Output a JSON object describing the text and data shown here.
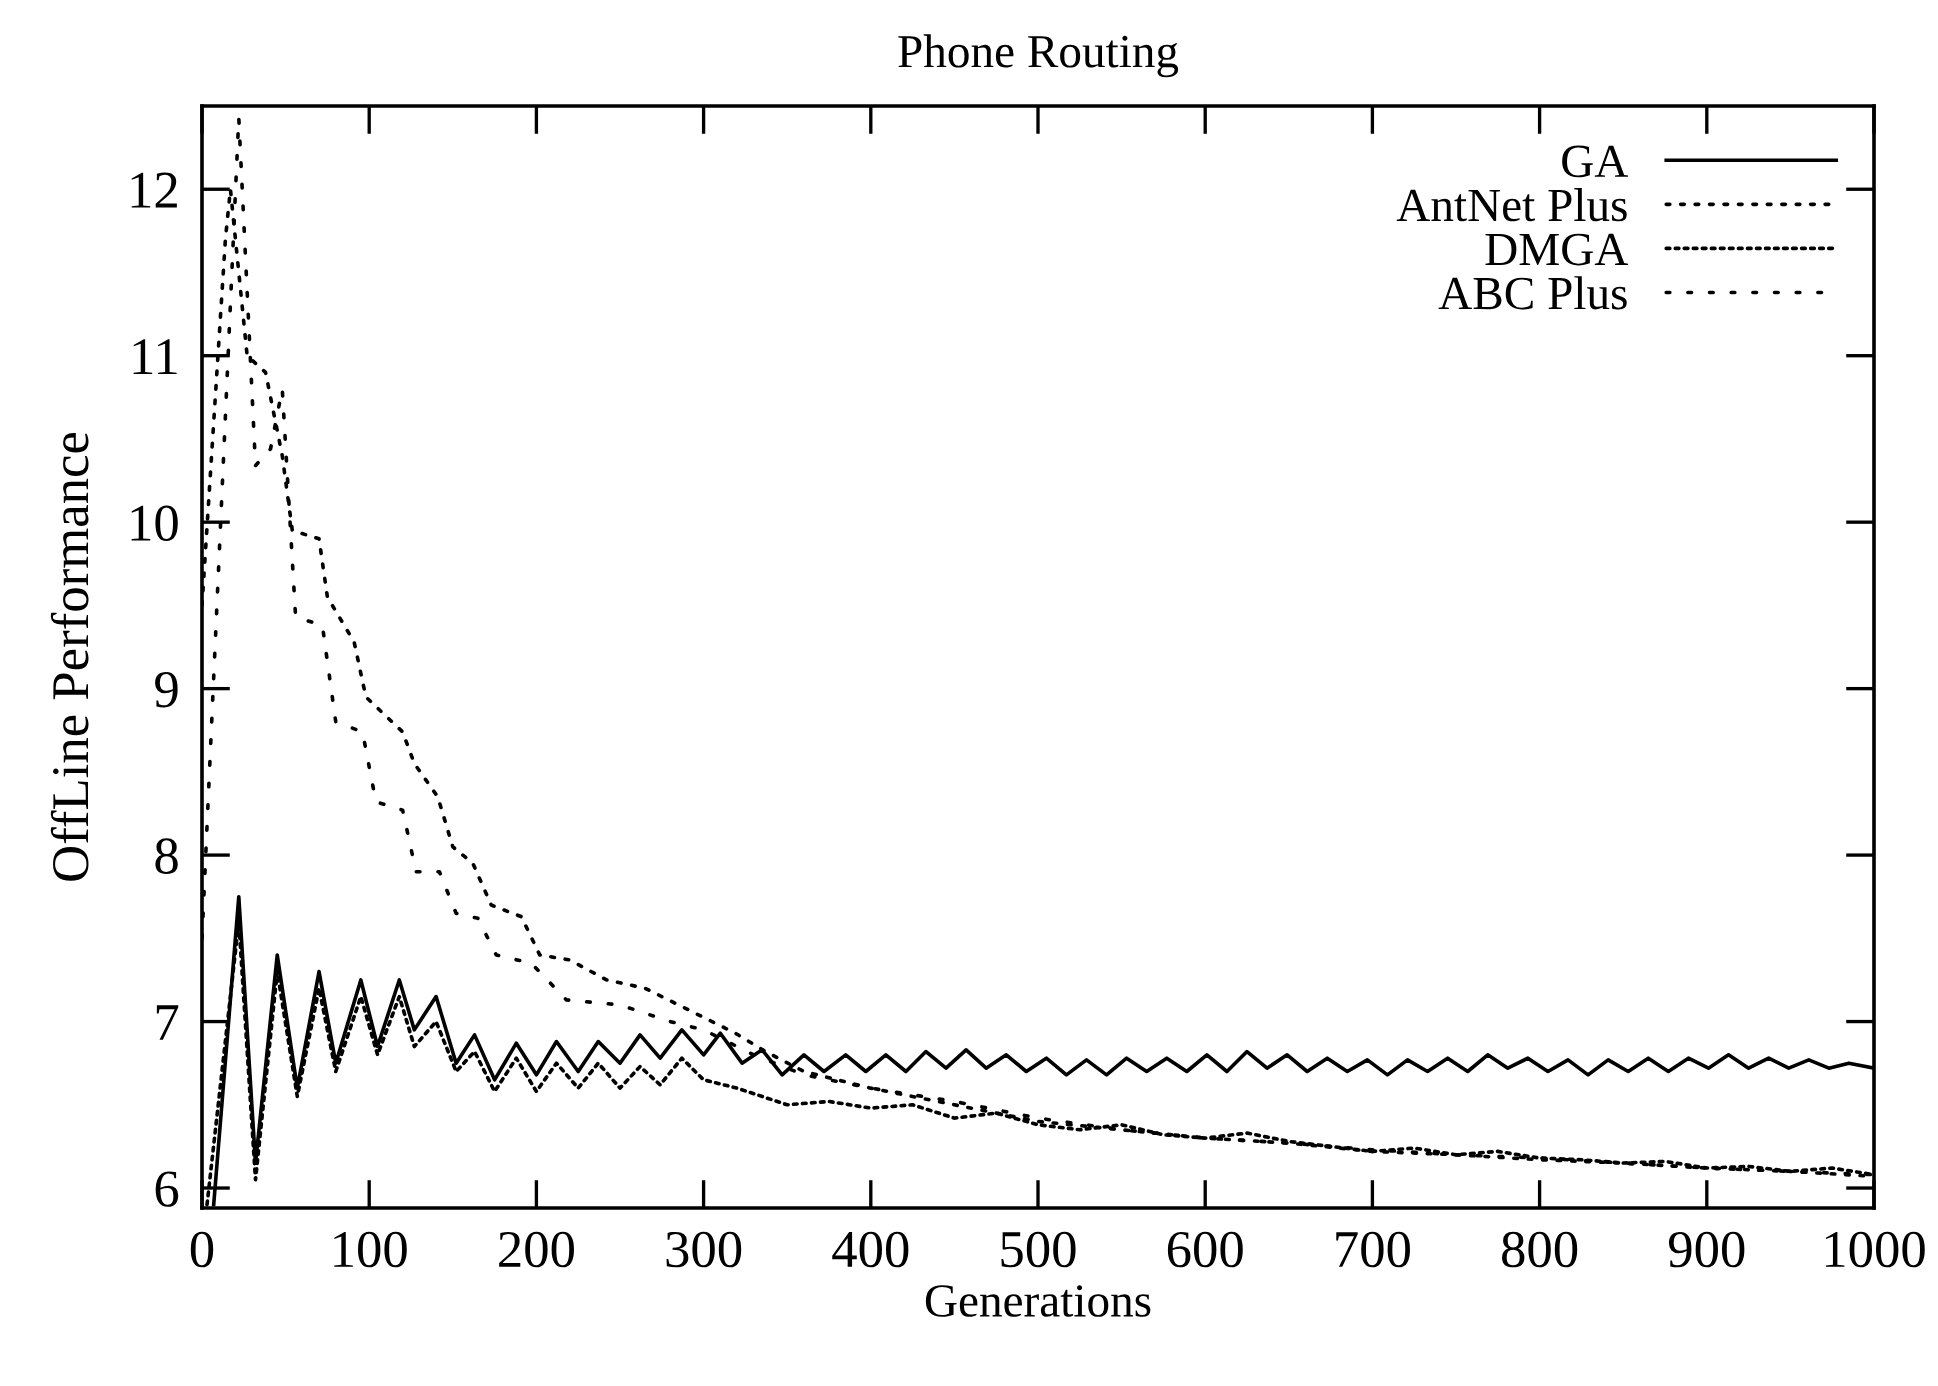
{
  "chart_data": {
    "type": "line",
    "title": "Phone Routing",
    "xlabel": "Generations",
    "ylabel": "OffLine Performance",
    "xlim": [
      0,
      1000
    ],
    "ylim": [
      5.88,
      12.5
    ],
    "xticks": [
      0,
      100,
      200,
      300,
      400,
      500,
      600,
      700,
      800,
      900,
      1000
    ],
    "yticks": [
      6,
      7,
      8,
      9,
      10,
      11,
      12
    ],
    "grid": false,
    "legend": "top right",
    "marker": "none",
    "series": [
      {
        "name": "GA",
        "color": "#000000",
        "line_style": "solid",
        "x": [
          7,
          22,
          32,
          45,
          57,
          70,
          80,
          95,
          105,
          118,
          127,
          140,
          152,
          163,
          175,
          188,
          200,
          212,
          225,
          237,
          250,
          262,
          274,
          287,
          300,
          310,
          323,
          335,
          347,
          360,
          372,
          385,
          397,
          409,
          421,
          433,
          445,
          457,
          469,
          481,
          493,
          505,
          517,
          529,
          541,
          553,
          565,
          577,
          589,
          601,
          613,
          625,
          637,
          649,
          661,
          673,
          685,
          697,
          709,
          721,
          733,
          745,
          757,
          769,
          781,
          793,
          805,
          817,
          829,
          841,
          853,
          865,
          877,
          889,
          901,
          913,
          925,
          937,
          949,
          961,
          973,
          985,
          1000
        ],
        "values": [
          5.9,
          7.75,
          6.15,
          7.4,
          6.6,
          7.3,
          6.75,
          7.25,
          6.85,
          7.25,
          6.95,
          7.15,
          6.75,
          6.92,
          6.65,
          6.87,
          6.68,
          6.88,
          6.7,
          6.88,
          6.75,
          6.92,
          6.78,
          6.95,
          6.8,
          6.93,
          6.75,
          6.83,
          6.68,
          6.8,
          6.7,
          6.8,
          6.7,
          6.8,
          6.7,
          6.82,
          6.72,
          6.83,
          6.72,
          6.8,
          6.7,
          6.78,
          6.68,
          6.77,
          6.68,
          6.78,
          6.7,
          6.78,
          6.7,
          6.8,
          6.7,
          6.82,
          6.72,
          6.8,
          6.7,
          6.78,
          6.7,
          6.77,
          6.68,
          6.77,
          6.7,
          6.78,
          6.7,
          6.8,
          6.72,
          6.78,
          6.7,
          6.77,
          6.68,
          6.77,
          6.7,
          6.78,
          6.7,
          6.78,
          6.72,
          6.8,
          6.72,
          6.78,
          6.72,
          6.77,
          6.72,
          6.75,
          6.72
        ]
      },
      {
        "name": "AntNet Plus",
        "color": "#000000",
        "line_style": "dotted",
        "x": [
          0,
          14,
          17,
          27,
          38,
          48,
          54,
          70,
          75,
          91,
          98,
          120,
          127,
          141,
          150,
          162,
          173,
          191,
          202,
          220,
          242,
          265,
          285,
          319,
          337,
          360,
          400,
          450,
          500,
          550,
          600,
          650,
          700,
          750,
          800,
          850,
          900,
          950,
          1000
        ],
        "values": [
          9.5,
          11.7,
          12.0,
          11.0,
          10.9,
          10.4,
          9.95,
          9.9,
          9.55,
          9.28,
          8.95,
          8.74,
          8.55,
          8.35,
          8.05,
          7.95,
          7.7,
          7.63,
          7.4,
          7.37,
          7.25,
          7.2,
          7.1,
          6.93,
          6.82,
          6.7,
          6.6,
          6.5,
          6.4,
          6.35,
          6.3,
          6.27,
          6.22,
          6.2,
          6.17,
          6.15,
          6.12,
          6.1,
          6.07
        ]
      },
      {
        "name": "DMGA",
        "color": "#000000",
        "line_style": "dotted",
        "x": [
          3,
          22,
          32,
          45,
          57,
          70,
          80,
          95,
          105,
          118,
          127,
          140,
          152,
          163,
          175,
          188,
          200,
          212,
          225,
          237,
          250,
          262,
          274,
          287,
          300,
          320,
          350,
          375,
          400,
          425,
          450,
          475,
          500,
          525,
          550,
          575,
          600,
          625,
          650,
          675,
          700,
          725,
          750,
          775,
          800,
          825,
          850,
          875,
          900,
          925,
          950,
          975,
          1000
        ],
        "values": [
          5.9,
          7.6,
          6.05,
          7.3,
          6.55,
          7.2,
          6.7,
          7.15,
          6.8,
          7.15,
          6.85,
          7.0,
          6.7,
          6.82,
          6.58,
          6.78,
          6.58,
          6.75,
          6.6,
          6.75,
          6.6,
          6.73,
          6.62,
          6.78,
          6.65,
          6.6,
          6.5,
          6.52,
          6.48,
          6.5,
          6.42,
          6.45,
          6.38,
          6.35,
          6.38,
          6.32,
          6.3,
          6.33,
          6.28,
          6.25,
          6.22,
          6.24,
          6.2,
          6.22,
          6.18,
          6.17,
          6.15,
          6.16,
          6.12,
          6.13,
          6.1,
          6.12,
          6.08
        ]
      },
      {
        "name": "ABC Plus",
        "color": "#000000",
        "line_style": "dotted",
        "x": [
          0,
          22,
          32,
          41,
          48,
          56,
          72,
          80,
          96,
          104,
          120,
          128,
          142,
          152,
          165,
          176,
          197,
          218,
          250,
          280,
          300,
          330,
          360,
          400,
          450,
          500,
          550,
          600,
          650,
          700,
          750,
          800,
          850,
          900,
          950,
          1000
        ],
        "values": [
          7.5,
          12.43,
          10.34,
          10.44,
          10.8,
          9.43,
          9.38,
          8.8,
          8.74,
          8.32,
          8.27,
          7.9,
          7.9,
          7.65,
          7.62,
          7.4,
          7.35,
          7.13,
          7.1,
          7.0,
          6.95,
          6.8,
          6.68,
          6.6,
          6.52,
          6.42,
          6.35,
          6.3,
          6.27,
          6.23,
          6.2,
          6.18,
          6.15,
          6.12,
          6.1,
          6.08
        ]
      }
    ]
  }
}
